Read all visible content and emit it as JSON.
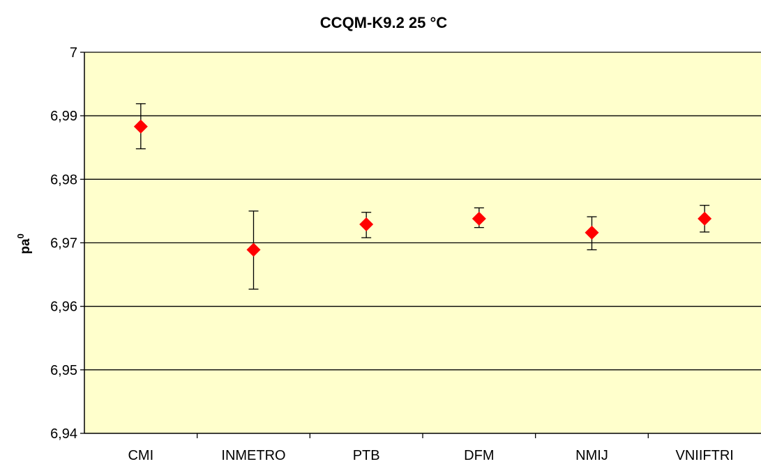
{
  "chart_data": {
    "type": "scatter",
    "title": "CCQM-K9.2 25 °C",
    "ylabel_main": "pa",
    "ylabel_sup": "0",
    "categories": [
      "CMI",
      "INMETRO",
      "PTB",
      "DFM",
      "NMIJ",
      "VNIIFTRI"
    ],
    "series": [
      {
        "values": [
          6.9883,
          6.9689,
          6.9729,
          6.9738,
          6.9716,
          6.9738
        ],
        "err_low": [
          6.9848,
          6.9627,
          6.9708,
          6.9724,
          6.9689,
          6.9717
        ],
        "err_high": [
          6.9919,
          6.975,
          6.9748,
          6.9755,
          6.9741,
          6.9759
        ]
      }
    ],
    "yticks": [
      "6,94",
      "6,95",
      "6,96",
      "6,97",
      "6,98",
      "6,99",
      "7"
    ],
    "ylim": [
      6.94,
      7.0
    ],
    "grid": true,
    "colors": {
      "plot_background": "#ffffcc",
      "marker": "#ff0000",
      "gridline": "#000000",
      "errorbar": "#000000"
    }
  }
}
